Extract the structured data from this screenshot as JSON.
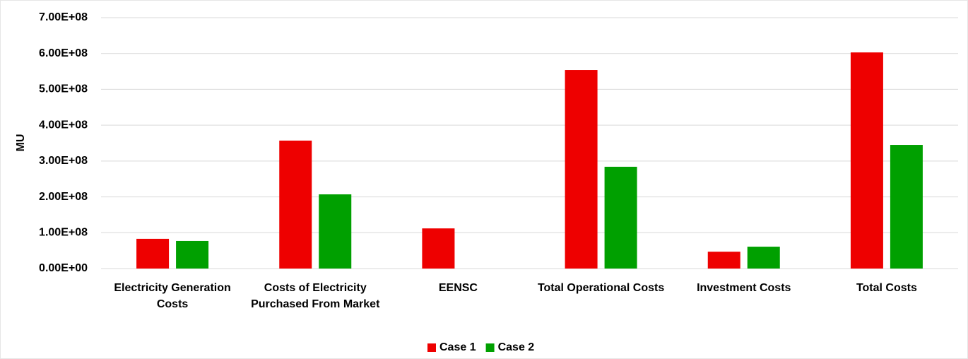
{
  "chart_data": {
    "type": "bar",
    "y_label": "MU",
    "categories": [
      "Electricity Generation Costs",
      "Costs of Electricity Purchased From Market",
      "EENSC",
      "Total Operational Costs",
      "Investment Costs",
      "Total Costs"
    ],
    "series": [
      {
        "name": "Case 1",
        "color": "#ee0000",
        "values": [
          83000000,
          357000000,
          112000000,
          554000000,
          47000000,
          603000000
        ]
      },
      {
        "name": "Case 2",
        "color": "#00a000",
        "values": [
          77000000,
          207000000,
          0,
          284000000,
          61000000,
          345000000
        ]
      }
    ],
    "ylim": [
      0,
      700000000
    ],
    "yticks": [
      {
        "value": 0,
        "label": "0.00E+00"
      },
      {
        "value": 100000000,
        "label": "1.00E+08"
      },
      {
        "value": 200000000,
        "label": "2.00E+08"
      },
      {
        "value": 300000000,
        "label": "3.00E+08"
      },
      {
        "value": 400000000,
        "label": "4.00E+08"
      },
      {
        "value": 500000000,
        "label": "5.00E+08"
      },
      {
        "value": 600000000,
        "label": "6.00E+08"
      },
      {
        "value": 700000000,
        "label": "7.00E+08"
      }
    ],
    "grid": true,
    "legend": "bottom"
  }
}
